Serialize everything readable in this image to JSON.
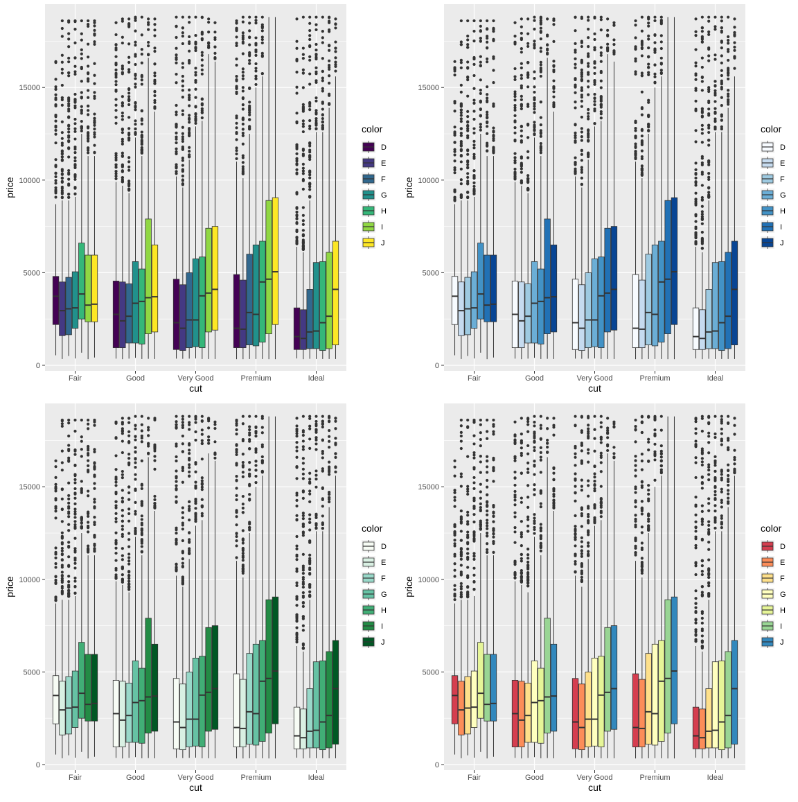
{
  "chart_data": [
    {
      "type": "boxplot",
      "palette_name": "viridis",
      "xlabel": "cut",
      "ylabel": "price",
      "categories": [
        "Fair",
        "Good",
        "Very Good",
        "Premium",
        "Ideal"
      ],
      "yticks": [
        0,
        5000,
        10000,
        15000
      ],
      "ylim": [
        -300,
        19500
      ],
      "legend": {
        "title": "color",
        "position": "right",
        "levels": [
          "D",
          "E",
          "F",
          "G",
          "H",
          "I",
          "J"
        ],
        "colors": [
          "#440154",
          "#443983",
          "#31688e",
          "#21918c",
          "#35b779",
          "#90d743",
          "#fde725"
        ]
      }
    },
    {
      "type": "boxplot",
      "palette_name": "Blues",
      "xlabel": "cut",
      "ylabel": "price",
      "categories": [
        "Fair",
        "Good",
        "Very Good",
        "Premium",
        "Ideal"
      ],
      "yticks": [
        0,
        5000,
        10000,
        15000
      ],
      "ylim": [
        -300,
        19500
      ],
      "legend": {
        "title": "color",
        "position": "right",
        "levels": [
          "D",
          "E",
          "F",
          "G",
          "H",
          "I",
          "J"
        ],
        "colors": [
          "#f7fbff",
          "#c6dbef",
          "#9ecae1",
          "#6baed6",
          "#4292c6",
          "#2171b5",
          "#084594"
        ]
      }
    },
    {
      "type": "boxplot",
      "palette_name": "Greens",
      "xlabel": "cut",
      "ylabel": "price",
      "categories": [
        "Fair",
        "Good",
        "Very Good",
        "Premium",
        "Ideal"
      ],
      "yticks": [
        0,
        5000,
        10000,
        15000
      ],
      "ylim": [
        -300,
        19500
      ],
      "legend": {
        "title": "color",
        "position": "right",
        "levels": [
          "D",
          "E",
          "F",
          "G",
          "H",
          "I",
          "J"
        ],
        "colors": [
          "#f7fcf5",
          "#d9f0e3",
          "#99d8c9",
          "#66c2a4",
          "#41ae76",
          "#238b45",
          "#005824"
        ]
      }
    },
    {
      "type": "boxplot",
      "palette_name": "Spectral",
      "xlabel": "cut",
      "ylabel": "price",
      "categories": [
        "Fair",
        "Good",
        "Very Good",
        "Premium",
        "Ideal"
      ],
      "yticks": [
        0,
        5000,
        10000,
        15000
      ],
      "ylim": [
        -300,
        19500
      ],
      "legend": {
        "title": "color",
        "position": "right",
        "levels": [
          "D",
          "E",
          "F",
          "G",
          "H",
          "I",
          "J"
        ],
        "colors": [
          "#d53e4f",
          "#fc8d59",
          "#fee08b",
          "#ffffbf",
          "#e6f598",
          "#99d594",
          "#3288bd"
        ]
      }
    }
  ],
  "box_stats": {
    "Fair": [
      {
        "lo": 540,
        "q1": 2200,
        "med": 3730,
        "q3": 4800,
        "hi": 8700,
        "omax": 16400
      },
      {
        "lo": 340,
        "q1": 1600,
        "med": 2950,
        "q3": 4500,
        "hi": 8900,
        "omax": 18600
      },
      {
        "lo": 500,
        "q1": 1650,
        "med": 3050,
        "q3": 4750,
        "hi": 8900,
        "omax": 18600
      },
      {
        "lo": 370,
        "q1": 2000,
        "med": 3100,
        "q3": 5050,
        "hi": 9100,
        "omax": 18600
      },
      {
        "lo": 680,
        "q1": 2500,
        "med": 3850,
        "q3": 6600,
        "hi": 12500,
        "omax": 18600
      },
      {
        "lo": 330,
        "q1": 2350,
        "med": 3250,
        "q3": 5950,
        "hi": 11300,
        "omax": 18600
      },
      {
        "lo": 420,
        "q1": 2350,
        "med": 3300,
        "q3": 5950,
        "hi": 11300,
        "omax": 18600
      }
    ],
    "Good": [
      {
        "lo": 360,
        "q1": 950,
        "med": 2750,
        "q3": 4550,
        "hi": 9900,
        "omax": 18500
      },
      {
        "lo": 330,
        "q1": 950,
        "med": 2400,
        "q3": 4500,
        "hi": 9700,
        "omax": 18700
      },
      {
        "lo": 360,
        "q1": 1200,
        "med": 2650,
        "q3": 4400,
        "hi": 9300,
        "omax": 18700
      },
      {
        "lo": 400,
        "q1": 1200,
        "med": 3350,
        "q3": 5600,
        "hi": 12300,
        "omax": 18800
      },
      {
        "lo": 340,
        "q1": 1150,
        "med": 3450,
        "q3": 5200,
        "hi": 11300,
        "omax": 18800
      },
      {
        "lo": 350,
        "q1": 1700,
        "med": 3650,
        "q3": 7900,
        "hi": 16600,
        "omax": 18700
      },
      {
        "lo": 340,
        "q1": 1800,
        "med": 3700,
        "q3": 6500,
        "hi": 13700,
        "omax": 18700
      }
    ],
    "Very Good": [
      {
        "lo": 360,
        "q1": 850,
        "med": 2300,
        "q3": 4650,
        "hi": 10200,
        "omax": 18800
      },
      {
        "lo": 350,
        "q1": 800,
        "med": 2000,
        "q3": 4350,
        "hi": 9600,
        "omax": 18800
      },
      {
        "lo": 360,
        "q1": 950,
        "med": 2450,
        "q3": 5000,
        "hi": 11100,
        "omax": 18800
      },
      {
        "lo": 370,
        "q1": 1000,
        "med": 2450,
        "q3": 5750,
        "hi": 12900,
        "omax": 18800
      },
      {
        "lo": 340,
        "q1": 950,
        "med": 3750,
        "q3": 5850,
        "hi": 13200,
        "omax": 18800
      },
      {
        "lo": 340,
        "q1": 1800,
        "med": 3900,
        "q3": 7400,
        "hi": 16800,
        "omax": 18700
      },
      {
        "lo": 340,
        "q1": 1900,
        "med": 4100,
        "q3": 7500,
        "hi": 16400,
        "omax": 18500
      }
    ],
    "Premium": [
      {
        "lo": 330,
        "q1": 950,
        "med": 2000,
        "q3": 4900,
        "hi": 11000,
        "omax": 18600
      },
      {
        "lo": 330,
        "q1": 950,
        "med": 1950,
        "q3": 4600,
        "hi": 10100,
        "omax": 18800
      },
      {
        "lo": 340,
        "q1": 1100,
        "med": 2850,
        "q3": 6000,
        "hi": 12500,
        "omax": 18800
      },
      {
        "lo": 340,
        "q1": 1050,
        "med": 2750,
        "q3": 6500,
        "hi": 15000,
        "omax": 18800
      },
      {
        "lo": 340,
        "q1": 1250,
        "med": 4500,
        "q3": 6700,
        "hi": 15600,
        "omax": 18800
      },
      {
        "lo": 330,
        "q1": 1700,
        "med": 4650,
        "q3": 8900,
        "hi": 18800,
        "omax": 18800
      },
      {
        "lo": 330,
        "q1": 2200,
        "med": 5050,
        "q3": 9050,
        "hi": 18800,
        "omax": 18800
      }
    ],
    "Ideal": [
      {
        "lo": 370,
        "q1": 850,
        "med": 1550,
        "q3": 3100,
        "hi": 6400,
        "omax": 18700
      },
      {
        "lo": 330,
        "q1": 850,
        "med": 1450,
        "q3": 3000,
        "hi": 6100,
        "omax": 18800
      },
      {
        "lo": 350,
        "q1": 900,
        "med": 1800,
        "q3": 4100,
        "hi": 8900,
        "omax": 18800
      },
      {
        "lo": 340,
        "q1": 900,
        "med": 1850,
        "q3": 5550,
        "hi": 12600,
        "omax": 18800
      },
      {
        "lo": 340,
        "q1": 800,
        "med": 2300,
        "q3": 5600,
        "hi": 12600,
        "omax": 18800
      },
      {
        "lo": 340,
        "q1": 900,
        "med": 2650,
        "q3": 6100,
        "hi": 13900,
        "omax": 18800
      },
      {
        "lo": 340,
        "q1": 1100,
        "med": 4100,
        "q3": 6700,
        "hi": 15600,
        "omax": 18700
      }
    ]
  }
}
